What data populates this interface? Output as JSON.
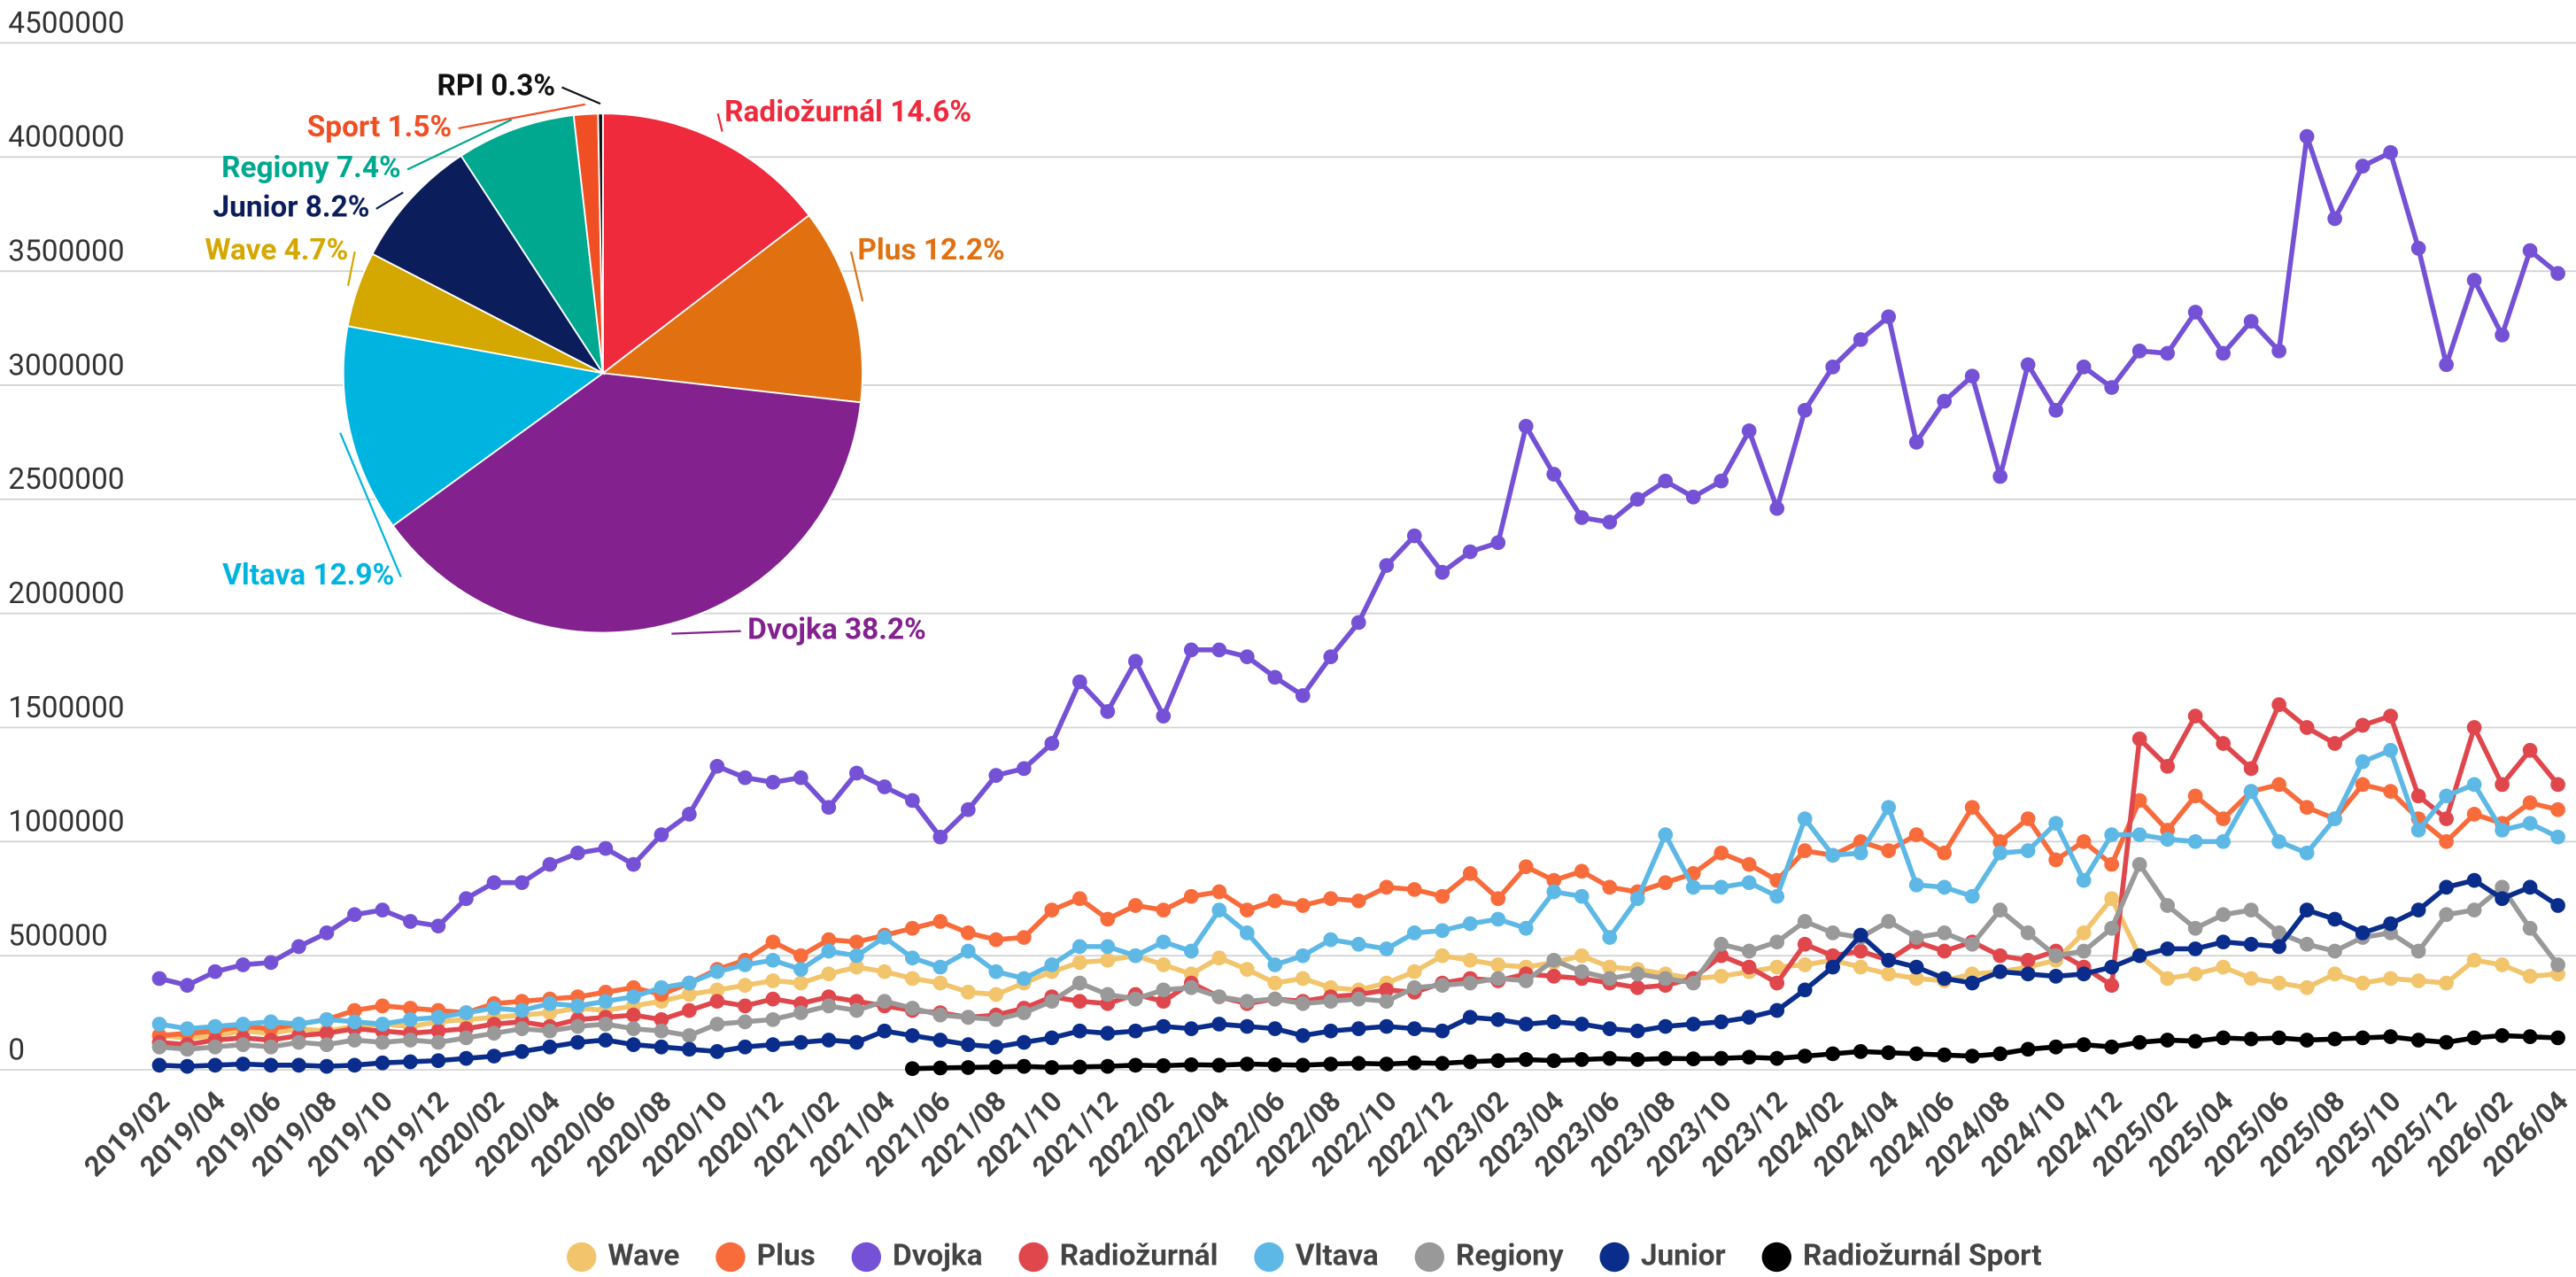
{
  "chart_data": [
    {
      "type": "line",
      "categories": [
        "2019/02",
        null,
        "2019/04",
        null,
        "2019/06",
        null,
        "2019/08",
        null,
        "2019/10",
        null,
        "2019/12",
        null,
        "2020/02",
        null,
        "2020/04",
        null,
        "2020/06",
        null,
        "2020/08",
        null,
        "2020/10",
        null,
        "2020/12",
        null,
        "2021/02",
        null,
        "2021/04",
        null,
        "2021/06",
        null,
        "2021/08",
        null,
        "2021/10",
        null,
        "2021/12",
        null,
        "2022/02",
        null,
        "2022/04",
        null,
        "2022/06",
        null,
        "2022/08",
        null,
        "2022/10",
        null,
        "2022/12",
        null,
        "2023/02",
        null,
        "2023/04",
        null,
        "2023/06",
        null,
        "2023/08",
        null,
        "2023/10",
        null,
        "2023/12",
        null,
        "2024/02",
        null,
        "2024/04",
        null,
        "2024/06",
        null,
        "2024/08",
        null,
        "2024/10",
        null,
        "2024/12",
        null,
        "2025/02",
        null,
        "2025/04",
        null,
        "2025/06",
        null,
        "2025/08",
        null,
        "2025/10",
        null,
        "2025/12",
        null,
        "2026/02",
        null,
        "2026/04"
      ],
      "ylim": [
        0,
        4500000
      ],
      "yticks": [
        0,
        500000,
        1000000,
        1500000,
        2000000,
        2500000,
        3000000,
        3500000,
        4000000,
        4500000
      ],
      "grid": true,
      "legend": "bottom",
      "series": [
        {
          "name": "Wave",
          "color": "#f2c46b",
          "values": [
            150000,
            140000,
            150000,
            170000,
            160000,
            180000,
            170000,
            190000,
            200000,
            190000,
            210000,
            220000,
            230000,
            240000,
            250000,
            270000,
            260000,
            280000,
            300000,
            330000,
            350000,
            370000,
            390000,
            380000,
            420000,
            450000,
            430000,
            400000,
            380000,
            340000,
            330000,
            380000,
            430000,
            470000,
            480000,
            500000,
            460000,
            420000,
            490000,
            440000,
            380000,
            400000,
            360000,
            350000,
            380000,
            430000,
            500000,
            480000,
            460000,
            450000,
            470000,
            500000,
            450000,
            440000,
            420000,
            400000,
            410000,
            430000,
            450000,
            460000,
            480000,
            450000,
            420000,
            400000,
            390000,
            420000,
            430000,
            450000,
            480000,
            600000,
            750000,
            500000,
            400000,
            420000,
            450000,
            400000,
            380000,
            360000,
            420000,
            380000,
            400000,
            390000,
            380000,
            480000,
            460000,
            410000,
            420000
          ]
        },
        {
          "name": "Plus",
          "color": "#f86b3b",
          "values": [
            150000,
            160000,
            170000,
            190000,
            180000,
            200000,
            220000,
            260000,
            280000,
            270000,
            260000,
            250000,
            290000,
            300000,
            310000,
            320000,
            340000,
            360000,
            330000,
            380000,
            440000,
            480000,
            560000,
            500000,
            570000,
            560000,
            590000,
            620000,
            650000,
            600000,
            570000,
            580000,
            700000,
            750000,
            660000,
            720000,
            700000,
            760000,
            780000,
            700000,
            740000,
            720000,
            750000,
            740000,
            800000,
            790000,
            760000,
            860000,
            750000,
            890000,
            830000,
            870000,
            800000,
            780000,
            820000,
            860000,
            950000,
            900000,
            830000,
            960000,
            940000,
            1000000,
            960000,
            1030000,
            950000,
            1150000,
            1000000,
            1100000,
            920000,
            1000000,
            900000,
            1180000,
            1050000,
            1200000,
            1100000,
            1220000,
            1250000,
            1150000,
            1100000,
            1250000,
            1220000,
            1100000,
            1000000,
            1120000,
            1080000,
            1170000,
            1140000
          ]
        },
        {
          "name": "Dvojka",
          "color": "#7551d6",
          "values": [
            400000,
            370000,
            430000,
            460000,
            470000,
            540000,
            600000,
            680000,
            700000,
            650000,
            630000,
            750000,
            820000,
            820000,
            900000,
            950000,
            970000,
            900000,
            1030000,
            1120000,
            1330000,
            1280000,
            1260000,
            1280000,
            1150000,
            1300000,
            1240000,
            1180000,
            1020000,
            1140000,
            1290000,
            1320000,
            1430000,
            1700000,
            1570000,
            1790000,
            1550000,
            1840000,
            1840000,
            1810000,
            1720000,
            1640000,
            1810000,
            1960000,
            2210000,
            2340000,
            2180000,
            2270000,
            2310000,
            2820000,
            2610000,
            2420000,
            2400000,
            2500000,
            2580000,
            2510000,
            2580000,
            2800000,
            2460000,
            2890000,
            3080000,
            3200000,
            3300000,
            2750000,
            2930000,
            3040000,
            2600000,
            3090000,
            2890000,
            3080000,
            2990000,
            3150000,
            3140000,
            3320000,
            3140000,
            3280000,
            3150000,
            4090000,
            3730000,
            3960000,
            4020000,
            3600000,
            3090000,
            3460000,
            3220000,
            3590000,
            3490000
          ]
        },
        {
          "name": "Radiožurnál",
          "color": "#e0474c",
          "values": [
            120000,
            110000,
            130000,
            140000,
            130000,
            150000,
            160000,
            180000,
            170000,
            160000,
            170000,
            180000,
            200000,
            210000,
            190000,
            220000,
            230000,
            240000,
            220000,
            260000,
            300000,
            280000,
            310000,
            290000,
            320000,
            300000,
            280000,
            260000,
            250000,
            230000,
            240000,
            270000,
            320000,
            300000,
            290000,
            330000,
            300000,
            380000,
            320000,
            290000,
            310000,
            300000,
            320000,
            330000,
            350000,
            340000,
            380000,
            400000,
            390000,
            420000,
            410000,
            400000,
            380000,
            360000,
            370000,
            400000,
            500000,
            450000,
            380000,
            550000,
            500000,
            520000,
            480000,
            560000,
            520000,
            560000,
            500000,
            480000,
            520000,
            450000,
            370000,
            1450000,
            1330000,
            1550000,
            1430000,
            1320000,
            1600000,
            1500000,
            1430000,
            1510000,
            1550000,
            1200000,
            1100000,
            1500000,
            1250000,
            1400000,
            1250000
          ]
        },
        {
          "name": "Vltava",
          "color": "#5db8e6",
          "values": [
            200000,
            180000,
            190000,
            200000,
            210000,
            200000,
            220000,
            210000,
            200000,
            220000,
            230000,
            250000,
            270000,
            260000,
            290000,
            280000,
            300000,
            320000,
            360000,
            380000,
            430000,
            460000,
            480000,
            440000,
            520000,
            500000,
            580000,
            490000,
            450000,
            520000,
            430000,
            400000,
            460000,
            540000,
            540000,
            500000,
            560000,
            520000,
            700000,
            600000,
            460000,
            500000,
            570000,
            550000,
            530000,
            600000,
            610000,
            640000,
            660000,
            620000,
            780000,
            760000,
            580000,
            750000,
            1030000,
            800000,
            800000,
            820000,
            760000,
            1100000,
            940000,
            950000,
            1150000,
            810000,
            800000,
            760000,
            950000,
            960000,
            1080000,
            830000,
            1030000,
            1030000,
            1010000,
            1000000,
            1000000,
            1220000,
            1000000,
            950000,
            1100000,
            1350000,
            1400000,
            1050000,
            1200000,
            1250000,
            1050000,
            1080000,
            1020000
          ]
        },
        {
          "name": "Regiony",
          "color": "#999999",
          "values": [
            100000,
            90000,
            100000,
            110000,
            100000,
            120000,
            110000,
            130000,
            120000,
            130000,
            120000,
            140000,
            160000,
            180000,
            170000,
            190000,
            200000,
            180000,
            170000,
            150000,
            200000,
            210000,
            220000,
            250000,
            280000,
            260000,
            300000,
            270000,
            240000,
            230000,
            220000,
            250000,
            300000,
            380000,
            330000,
            310000,
            350000,
            360000,
            320000,
            300000,
            310000,
            290000,
            300000,
            310000,
            300000,
            360000,
            370000,
            380000,
            400000,
            390000,
            480000,
            430000,
            400000,
            420000,
            400000,
            380000,
            550000,
            520000,
            560000,
            650000,
            600000,
            580000,
            650000,
            580000,
            600000,
            550000,
            700000,
            600000,
            500000,
            520000,
            620000,
            900000,
            720000,
            620000,
            680000,
            700000,
            600000,
            550000,
            520000,
            580000,
            600000,
            520000,
            680000,
            700000,
            800000,
            620000,
            460000
          ]
        },
        {
          "name": "Junior",
          "color": "#0a2d8c",
          "values": [
            20000,
            15000,
            20000,
            25000,
            20000,
            20000,
            15000,
            20000,
            30000,
            35000,
            40000,
            50000,
            60000,
            80000,
            100000,
            120000,
            130000,
            110000,
            100000,
            90000,
            80000,
            100000,
            110000,
            120000,
            130000,
            120000,
            170000,
            150000,
            130000,
            110000,
            100000,
            120000,
            140000,
            170000,
            160000,
            170000,
            190000,
            180000,
            200000,
            190000,
            180000,
            150000,
            170000,
            180000,
            190000,
            180000,
            170000,
            230000,
            220000,
            200000,
            210000,
            200000,
            180000,
            170000,
            190000,
            200000,
            210000,
            230000,
            260000,
            350000,
            450000,
            590000,
            480000,
            450000,
            400000,
            380000,
            430000,
            420000,
            410000,
            420000,
            450000,
            500000,
            530000,
            530000,
            560000,
            550000,
            540000,
            700000,
            660000,
            600000,
            640000,
            700000,
            800000,
            830000,
            750000,
            800000,
            720000
          ]
        },
        {
          "name": "Radiožurnál Sport",
          "color": "#000000",
          "values": [
            null,
            null,
            null,
            null,
            null,
            null,
            null,
            null,
            null,
            null,
            null,
            null,
            null,
            null,
            null,
            null,
            null,
            null,
            null,
            null,
            null,
            null,
            null,
            null,
            null,
            null,
            null,
            5000,
            8000,
            10000,
            12000,
            15000,
            10000,
            12000,
            15000,
            20000,
            18000,
            22000,
            20000,
            25000,
            22000,
            20000,
            25000,
            28000,
            25000,
            30000,
            28000,
            35000,
            40000,
            45000,
            40000,
            45000,
            50000,
            45000,
            50000,
            48000,
            50000,
            55000,
            50000,
            60000,
            70000,
            80000,
            75000,
            70000,
            65000,
            60000,
            70000,
            90000,
            100000,
            110000,
            100000,
            120000,
            130000,
            125000,
            140000,
            135000,
            140000,
            130000,
            135000,
            140000,
            145000,
            130000,
            120000,
            140000,
            150000,
            145000,
            140000
          ]
        }
      ]
    },
    {
      "type": "pie",
      "values": [
        14.6,
        12.2,
        38.2,
        12.9,
        4.7,
        8.2,
        7.4,
        1.5,
        0.3
      ],
      "value_labels": [
        "Radiožurnál 14.6%",
        "Plus 12.2%",
        "Dvojka 38.2%",
        "Vltava 12.9%",
        "Wave 4.7%",
        "Junior 8.2%",
        "Regiony 7.4%",
        "Sport 1.5%",
        "RPI 0.3%"
      ],
      "colors": [
        "#ee2a3c",
        "#e07010",
        "#83218f",
        "#00b4e0",
        "#d4a800",
        "#0b1e5b",
        "#00a88f",
        "#f04e23",
        "#111111"
      ],
      "label_colors": [
        "#ee2a3c",
        "#e07010",
        "#83218f",
        "#00b4e0",
        "#d4a800",
        "#0b1e5b",
        "#00a88f",
        "#f04e23",
        "#111111"
      ]
    }
  ]
}
